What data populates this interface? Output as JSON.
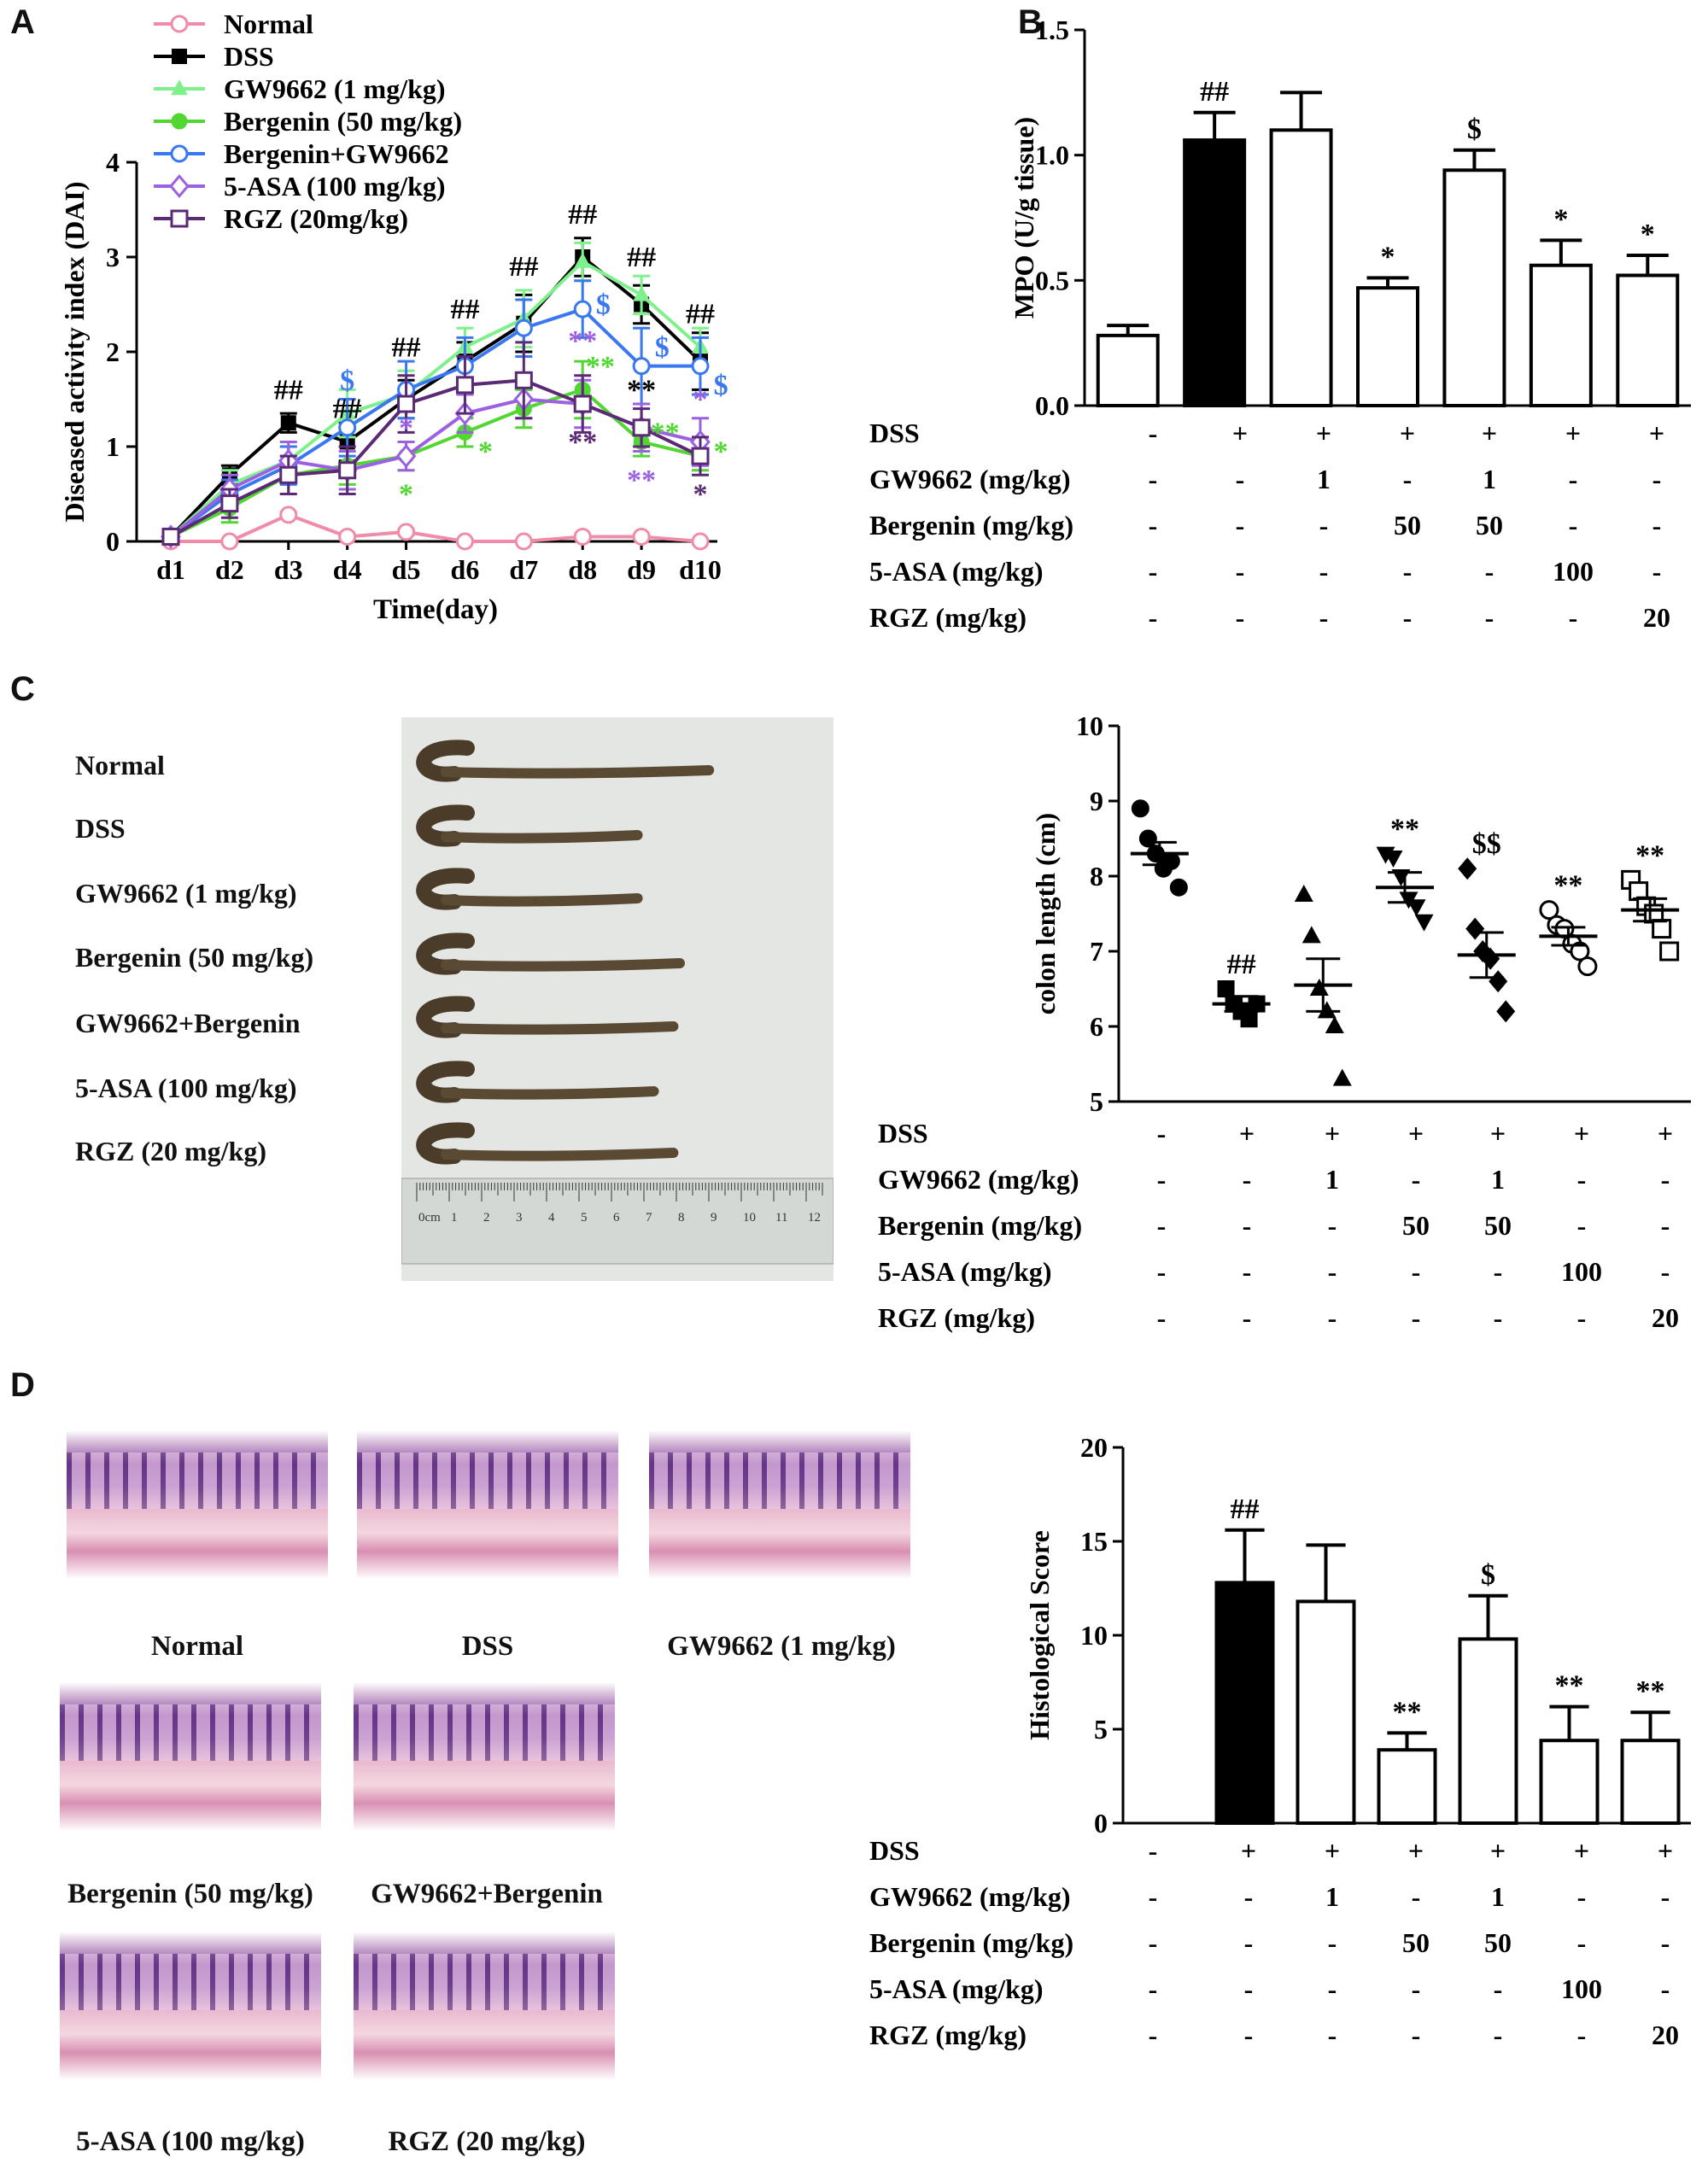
{
  "panels": {
    "A": "A",
    "B": "B",
    "C": "C",
    "D": "D"
  },
  "colors": {
    "normal": "#f08ca8",
    "dss": "#000000",
    "gw9662": "#7ef08c",
    "bergenin": "#52d632",
    "bergenin_gw9662": "#3a78f0",
    "asa": "#9b61e0",
    "rgz": "#5a2a74",
    "bar_black": "#000000"
  },
  "chart_data": [
    {
      "id": "A",
      "type": "line",
      "title": "",
      "xlabel": "Time(day)",
      "ylabel": "Diseased activity index (DAI)",
      "ylim": [
        0,
        4
      ],
      "yticks": [
        "0",
        "1",
        "2",
        "3",
        "4"
      ],
      "categories": [
        "d1",
        "d2",
        "d3",
        "d4",
        "d5",
        "d6",
        "d7",
        "d8",
        "d9",
        "d10"
      ],
      "legend": [
        "Normal",
        "DSS",
        "GW9662 (1 mg/kg)",
        "Bergenin (50 mg/kg)",
        "Bergenin+GW9662",
        "5-ASA (100 mg/kg)",
        "RGZ (20mg/kg)"
      ],
      "legend_position": "top-left",
      "series": [
        {
          "name": "Normal",
          "color_key": "normal",
          "marker": "circle-open",
          "values": [
            0,
            0,
            0.28,
            0.05,
            0.1,
            0,
            0,
            0.05,
            0.05,
            0
          ],
          "err": [
            0,
            0,
            0.03,
            0.02,
            0.03,
            0,
            0,
            0.02,
            0.02,
            0
          ]
        },
        {
          "name": "DSS",
          "color_key": "dss",
          "marker": "square-filled",
          "values": [
            0.05,
            0.7,
            1.25,
            1.05,
            1.5,
            1.9,
            2.3,
            3.0,
            2.5,
            1.9
          ],
          "err": [
            0.03,
            0.1,
            0.1,
            0.2,
            0.2,
            0.2,
            0.3,
            0.2,
            0.2,
            0.3
          ]
        },
        {
          "name": "GW9662 (1 mg/kg)",
          "color_key": "gw9662",
          "marker": "triangle-filled",
          "values": [
            0.05,
            0.6,
            0.85,
            1.35,
            1.55,
            2.05,
            2.35,
            2.95,
            2.6,
            2.05
          ],
          "err": [
            0.03,
            0.15,
            0.15,
            0.25,
            0.25,
            0.2,
            0.3,
            0.2,
            0.2,
            0.2
          ]
        },
        {
          "name": "Bergenin (50 mg/kg)",
          "color_key": "bergenin",
          "marker": "circle-filled",
          "values": [
            0.05,
            0.35,
            0.7,
            0.8,
            0.9,
            1.15,
            1.4,
            1.6,
            1.05,
            0.9
          ],
          "err": [
            0.03,
            0.15,
            0.2,
            0.2,
            0.15,
            0.15,
            0.2,
            0.3,
            0.15,
            0.15
          ]
        },
        {
          "name": "Bergenin+GW9662",
          "color_key": "bergenin_gw9662",
          "marker": "circle-open",
          "values": [
            0.05,
            0.5,
            0.8,
            1.2,
            1.6,
            1.85,
            2.25,
            2.45,
            1.85,
            1.85
          ],
          "err": [
            0.03,
            0.15,
            0.2,
            0.3,
            0.3,
            0.3,
            0.3,
            0.3,
            0.4,
            0.3
          ]
        },
        {
          "name": "5-ASA (100 mg/kg)",
          "color_key": "asa",
          "marker": "diamond-open",
          "values": [
            0.05,
            0.55,
            0.85,
            0.75,
            0.9,
            1.35,
            1.5,
            1.45,
            1.2,
            1.05
          ],
          "err": [
            0.03,
            0.15,
            0.2,
            0.2,
            0.15,
            0.2,
            0.2,
            0.25,
            0.25,
            0.25
          ]
        },
        {
          "name": "RGZ (20mg/kg)",
          "color_key": "rgz",
          "marker": "square-open",
          "values": [
            0.05,
            0.4,
            0.7,
            0.75,
            1.45,
            1.65,
            1.7,
            1.45,
            1.2,
            0.9
          ],
          "err": [
            0.03,
            0.15,
            0.2,
            0.25,
            0.3,
            0.3,
            0.4,
            0.3,
            0.2,
            0.2
          ]
        }
      ],
      "annotations": [
        {
          "text": "##",
          "cat": 2,
          "y": 1.5,
          "color_key": "dss"
        },
        {
          "text": "##",
          "cat": 3,
          "y": 1.3,
          "color_key": "dss"
        },
        {
          "text": "##",
          "cat": 4,
          "y": 1.95,
          "color_key": "dss"
        },
        {
          "text": "##",
          "cat": 5,
          "y": 2.35,
          "color_key": "dss"
        },
        {
          "text": "##",
          "cat": 6,
          "y": 2.8,
          "color_key": "dss"
        },
        {
          "text": "##",
          "cat": 7,
          "y": 3.35,
          "color_key": "dss"
        },
        {
          "text": "##",
          "cat": 8,
          "y": 2.9,
          "color_key": "dss"
        },
        {
          "text": "##",
          "cat": 9,
          "y": 2.3,
          "color_key": "dss"
        },
        {
          "text": "$",
          "cat": 3,
          "y": 1.6,
          "color_key": "bergenin_gw9662"
        },
        {
          "text": "$",
          "cat": 7.35,
          "y": 2.4,
          "color_key": "bergenin_gw9662"
        },
        {
          "text": "$",
          "cat": 8.35,
          "y": 1.95,
          "color_key": "bergenin_gw9662"
        },
        {
          "text": "$",
          "cat": 9.35,
          "y": 1.55,
          "color_key": "bergenin_gw9662"
        },
        {
          "text": "*",
          "cat": 4,
          "y": 1.1,
          "color_key": "asa"
        },
        {
          "text": "*",
          "cat": 4,
          "y": 0.4,
          "color_key": "bergenin"
        },
        {
          "text": "*",
          "cat": 5.35,
          "y": 0.85,
          "color_key": "bergenin"
        },
        {
          "text": "**",
          "cat": 7.3,
          "y": 1.75,
          "color_key": "bergenin"
        },
        {
          "text": "**",
          "cat": 7,
          "y": 2.02,
          "color_key": "asa"
        },
        {
          "text": "**",
          "cat": 7,
          "y": 0.95,
          "color_key": "rgz"
        },
        {
          "text": "**",
          "cat": 8,
          "y": 1.5,
          "color_key": "dss"
        },
        {
          "text": "**",
          "cat": 8,
          "y": 0.55,
          "color_key": "asa"
        },
        {
          "text": "**",
          "cat": 8.4,
          "y": 1.05,
          "color_key": "bergenin"
        },
        {
          "text": "*",
          "cat": 9,
          "y": 1.4,
          "color_key": "asa"
        },
        {
          "text": "*",
          "cat": 9.35,
          "y": 0.85,
          "color_key": "bergenin"
        },
        {
          "text": "*",
          "cat": 9,
          "y": 0.4,
          "color_key": "rgz"
        }
      ]
    },
    {
      "id": "B",
      "type": "bar",
      "title": "",
      "xlabel": "",
      "ylabel": "MPO (U/g tissue)",
      "ylim": [
        0,
        1.5
      ],
      "yticks": [
        "0.0",
        "0.5",
        "1.0",
        "1.5"
      ],
      "values": [
        0.28,
        1.06,
        1.1,
        0.47,
        0.94,
        0.56,
        0.52
      ],
      "err": [
        0.04,
        0.11,
        0.15,
        0.04,
        0.08,
        0.1,
        0.08
      ],
      "fills": [
        "white",
        "black",
        "white",
        "white",
        "white",
        "white",
        "white"
      ],
      "annotations": [
        "",
        "##",
        "",
        "*",
        "$",
        "*",
        "*"
      ]
    },
    {
      "id": "C",
      "type": "scatter",
      "title": "",
      "xlabel": "",
      "ylabel": "colon length (cm)",
      "ylim": [
        5,
        10
      ],
      "yticks": [
        "5",
        "6",
        "7",
        "8",
        "9",
        "10"
      ],
      "means": [
        8.3,
        6.3,
        6.55,
        7.85,
        6.95,
        7.2,
        7.55
      ],
      "sems": [
        0.15,
        0.1,
        0.35,
        0.2,
        0.3,
        0.12,
        0.15
      ],
      "markers": [
        "circle-filled",
        "square-filled",
        "triangle-filled",
        "triangle-down-filled",
        "diamond-filled",
        "circle-open",
        "square-open"
      ],
      "points": [
        [
          8.9,
          8.5,
          8.3,
          8.1,
          8.2,
          7.85
        ],
        [
          6.5,
          6.3,
          6.2,
          6.1,
          6.3
        ],
        [
          7.75,
          7.2,
          6.5,
          6.2,
          6.0,
          5.3
        ],
        [
          8.3,
          8.25,
          8.0,
          7.7,
          7.6,
          7.4
        ],
        [
          8.1,
          7.3,
          7.0,
          6.9,
          6.6,
          6.2
        ],
        [
          7.55,
          7.35,
          7.3,
          7.1,
          7.0,
          6.8
        ],
        [
          7.95,
          7.8,
          7.6,
          7.5,
          7.3,
          7.0
        ]
      ],
      "annotations": [
        "",
        "##",
        "",
        "**",
        "$$",
        "**",
        "**"
      ]
    },
    {
      "id": "D",
      "type": "bar",
      "title": "",
      "xlabel": "",
      "ylabel": "Histological Score",
      "ylim": [
        0,
        20
      ],
      "yticks": [
        "0",
        "5",
        "10",
        "15",
        "20"
      ],
      "values": [
        0,
        12.8,
        11.8,
        3.9,
        9.8,
        4.4,
        4.4
      ],
      "err": [
        0,
        2.8,
        3.0,
        0.9,
        2.3,
        1.8,
        1.5
      ],
      "fills": [
        "white",
        "black",
        "white",
        "white",
        "white",
        "white",
        "white"
      ],
      "annotations": [
        "",
        "##",
        "",
        "**",
        "$",
        "**",
        "**"
      ]
    }
  ],
  "treatment_table": {
    "row_labels": [
      "DSS",
      "GW9662 (mg/kg)",
      "Bergenin  (mg/kg)",
      "5-ASA (mg/kg)",
      "RGZ (mg/kg)"
    ],
    "rows": [
      [
        "-",
        "+",
        "+",
        "+",
        "+",
        "+",
        "+"
      ],
      [
        "-",
        "-",
        "1",
        "-",
        "1",
        "-",
        "-"
      ],
      [
        "-",
        "-",
        "-",
        "50",
        "50",
        "-",
        "-"
      ],
      [
        "-",
        "-",
        "-",
        "-",
        "-",
        "100",
        "-"
      ],
      [
        "-",
        "-",
        "-",
        "-",
        "-",
        "-",
        "20"
      ]
    ]
  },
  "panel_c": {
    "colon_labels": [
      "Normal",
      "DSS",
      "GW9662 (1 mg/kg)",
      "Bergenin (50 mg/kg)",
      "GW9662+Bergenin",
      "5-ASA (100 mg/kg)",
      "RGZ (20 mg/kg)"
    ],
    "colon_lengths_cm": [
      8.9,
      6.7,
      6.7,
      8.0,
      7.8,
      7.2,
      7.8
    ],
    "ruler_numbers": [
      "0cm",
      "1",
      "2",
      "3",
      "4",
      "5",
      "6",
      "7",
      "8",
      "9",
      "10",
      "11",
      "12"
    ]
  },
  "panel_d": {
    "image_labels": [
      "Normal",
      "DSS",
      "GW9662 (1 mg/kg)",
      "Bergenin (50 mg/kg)",
      "GW9662+Bergenin",
      "5-ASA (100 mg/kg)",
      "RGZ (20 mg/kg)"
    ]
  }
}
